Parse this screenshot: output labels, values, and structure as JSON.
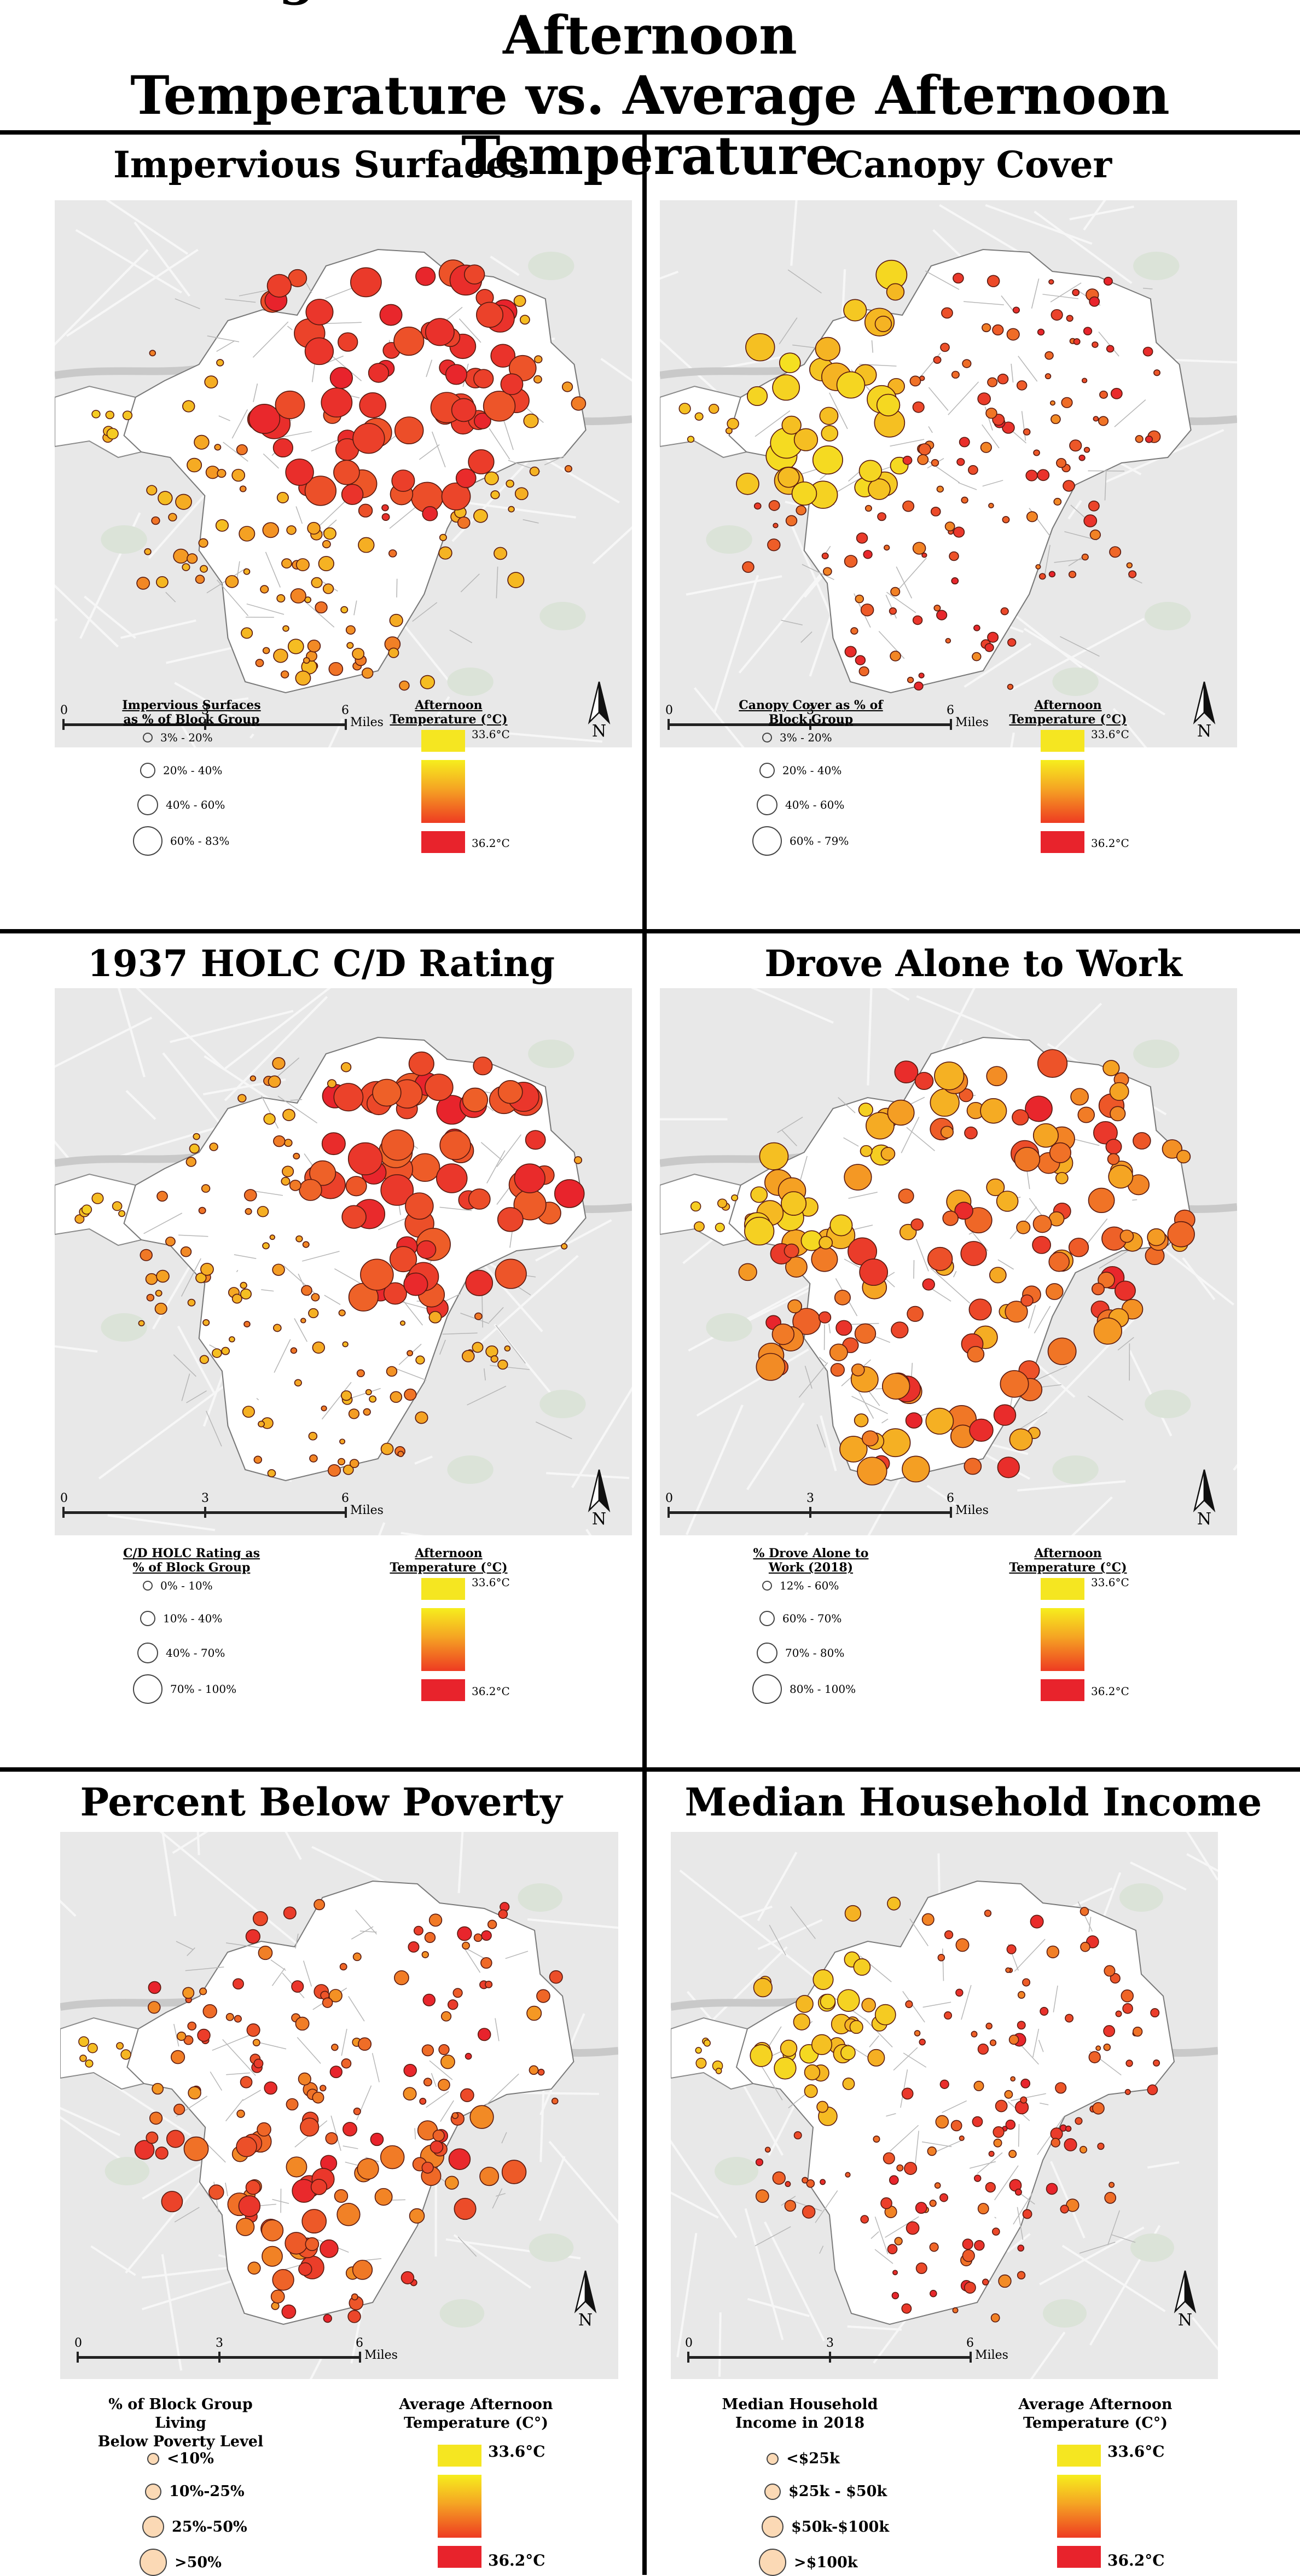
{
  "title_line1": "Strongest Variables Associated With Afternoon",
  "title_line2": "Temperature vs. Average Afternoon Temperature",
  "scale": {
    "zero": "0",
    "three": "3",
    "six": "6",
    "unit": "Miles"
  },
  "north": "N",
  "temp_colors": {
    "cool": "#f5e621",
    "warm": "#f5a623",
    "hot": "#e8232c"
  },
  "panels": [
    {
      "title": "Impervious Surfaces",
      "size_legend_title_1": "Impervious Surfaces",
      "size_legend_title_2": "as % of Block Group",
      "size_classes": [
        "3% - 20%",
        "20% - 40%",
        "40% - 60%",
        "60% - 83%"
      ],
      "temp_legend_title_1": "Afternoon",
      "temp_legend_title_2": "Temperature (°C)",
      "temp_min": "33.6°C",
      "temp_max": "36.2°C",
      "hotspot": "north-center"
    },
    {
      "title": "Canopy Cover",
      "size_legend_title_1": "Canopy Cover as % of",
      "size_legend_title_2": "Block Group",
      "size_classes": [
        "3% - 20%",
        "20% - 40%",
        "40% - 60%",
        "60% - 79%"
      ],
      "temp_legend_title_1": "Afternoon",
      "temp_legend_title_2": "Temperature (°C)",
      "temp_min": "33.6°C",
      "temp_max": "36.2°C",
      "hotspot": "west"
    },
    {
      "title": "1937 HOLC C/D Rating",
      "size_legend_title_1": "C/D HOLC Rating as",
      "size_legend_title_2": "% of Block Group",
      "size_classes": [
        "0% - 10%",
        "10% - 40%",
        "40% - 70%",
        "70% - 100%"
      ],
      "temp_legend_title_1": "Afternoon",
      "temp_legend_title_2": "Temperature (°C)",
      "temp_min": "33.6°C",
      "temp_max": "36.2°C",
      "hotspot": "east"
    },
    {
      "title": "Drove Alone to Work",
      "size_legend_title_1": "% Drove Alone to",
      "size_legend_title_2": "Work (2018)",
      "size_classes": [
        "12% - 60%",
        "60% - 70%",
        "70% - 80%",
        "80% - 100%"
      ],
      "temp_legend_title_1": "Afternoon",
      "temp_legend_title_2": "Temperature (°C)",
      "temp_min": "33.6°C",
      "temp_max": "36.2°C",
      "hotspot": "spread"
    },
    {
      "title": "Percent Below Poverty",
      "size_legend_title_1": "% of Block Group Living",
      "size_legend_title_2": "Below Poverty Level",
      "size_classes": [
        "<10%",
        "10%-25%",
        "25%-50%",
        ">50%"
      ],
      "temp_legend_title_1": "Average Afternoon",
      "temp_legend_title_2": "Temperature (C°)",
      "temp_min": "33.6°C",
      "temp_max": "36.2°C",
      "hotspot": "south"
    },
    {
      "title": "Median Household Income",
      "size_legend_title_1": "Median Household",
      "size_legend_title_2": "Income in 2018",
      "size_classes": [
        "<$25k",
        "$25k - $50k",
        "$50k-$100k",
        ">$100k"
      ],
      "temp_legend_title_1": "Average Afternoon",
      "temp_legend_title_2": "Temperature (C°)",
      "temp_min": "33.6°C",
      "temp_max": "36.2°C",
      "hotspot": "west-small"
    }
  ]
}
